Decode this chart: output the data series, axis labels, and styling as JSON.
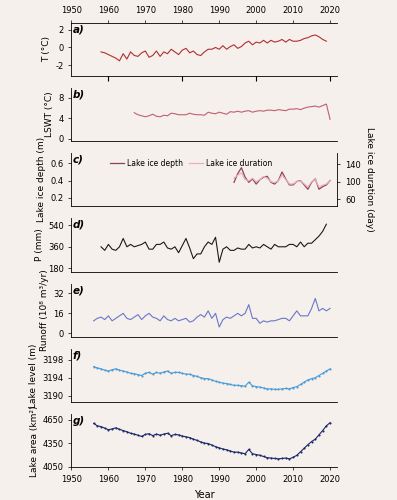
{
  "title_top_ticks": [
    1950,
    1960,
    1970,
    1980,
    1990,
    2000,
    2010,
    2020
  ],
  "xlim": [
    1950,
    2022
  ],
  "xlabel": "Year",
  "bg_color": "#f5f0eb",
  "panel_a": {
    "ylabel": "T (°C)",
    "ylim": [
      -3.2,
      2.8
    ],
    "yticks": [
      -2,
      0,
      2
    ],
    "color": "#b03030",
    "data_x": [
      1958,
      1959,
      1960,
      1961,
      1962,
      1963,
      1964,
      1965,
      1966,
      1967,
      1968,
      1969,
      1970,
      1971,
      1972,
      1973,
      1974,
      1975,
      1976,
      1977,
      1978,
      1979,
      1980,
      1981,
      1982,
      1983,
      1984,
      1985,
      1986,
      1987,
      1988,
      1989,
      1990,
      1991,
      1992,
      1993,
      1994,
      1995,
      1996,
      1997,
      1998,
      1999,
      2000,
      2001,
      2002,
      2003,
      2004,
      2005,
      2006,
      2007,
      2008,
      2009,
      2010,
      2011,
      2012,
      2013,
      2014,
      2015,
      2016,
      2017,
      2018,
      2019
    ],
    "data_y": [
      -0.5,
      -0.6,
      -0.8,
      -1.0,
      -1.2,
      -1.5,
      -0.7,
      -1.3,
      -0.5,
      -0.9,
      -1.0,
      -0.6,
      -0.4,
      -1.1,
      -0.9,
      -0.4,
      -1.0,
      -0.5,
      -0.7,
      -0.2,
      -0.5,
      -0.8,
      -0.3,
      -0.1,
      -0.6,
      -0.4,
      -0.8,
      -0.9,
      -0.5,
      -0.2,
      -0.2,
      0.0,
      -0.2,
      0.2,
      -0.2,
      0.1,
      0.3,
      -0.1,
      0.1,
      0.5,
      0.7,
      0.3,
      0.6,
      0.5,
      0.8,
      0.5,
      0.8,
      0.6,
      0.7,
      0.9,
      0.6,
      0.9,
      0.7,
      0.7,
      0.8,
      1.0,
      1.1,
      1.3,
      1.4,
      1.2,
      0.9,
      0.7
    ]
  },
  "panel_b": {
    "ylabel": "LSWT (°C)",
    "ylim": [
      -0.5,
      10
    ],
    "yticks": [
      0,
      4,
      8
    ],
    "color": "#c06070",
    "data_x": [
      1967,
      1968,
      1969,
      1970,
      1971,
      1972,
      1973,
      1974,
      1975,
      1976,
      1977,
      1978,
      1979,
      1980,
      1981,
      1982,
      1983,
      1984,
      1985,
      1986,
      1987,
      1988,
      1989,
      1990,
      1991,
      1992,
      1993,
      1994,
      1995,
      1996,
      1997,
      1998,
      1999,
      2000,
      2001,
      2002,
      2003,
      2004,
      2005,
      2006,
      2007,
      2008,
      2009,
      2010,
      2011,
      2012,
      2013,
      2014,
      2015,
      2016,
      2017,
      2018,
      2019,
      2020
    ],
    "data_y": [
      5.1,
      4.7,
      4.5,
      4.3,
      4.5,
      4.8,
      4.4,
      4.3,
      4.6,
      4.5,
      5.0,
      4.9,
      4.7,
      4.7,
      4.7,
      5.0,
      4.8,
      4.7,
      4.7,
      4.6,
      5.2,
      5.0,
      4.9,
      5.2,
      5.0,
      4.8,
      5.3,
      5.2,
      5.4,
      5.2,
      5.4,
      5.5,
      5.2,
      5.4,
      5.5,
      5.4,
      5.6,
      5.6,
      5.5,
      5.7,
      5.6,
      5.5,
      5.8,
      5.8,
      5.9,
      5.7,
      6.0,
      6.2,
      6.3,
      6.4,
      6.2,
      6.5,
      6.8,
      3.8
    ]
  },
  "panel_c": {
    "ylabel_left": "Lake ice depth (m)",
    "ylabel_right": "Lake ice duration (day)",
    "ylim_left": [
      0.1,
      0.72
    ],
    "ylim_right": [
      44,
      165
    ],
    "yticks_left": [
      0.2,
      0.4,
      0.6
    ],
    "yticks_right": [
      60,
      100,
      140
    ],
    "color_depth": "#904060",
    "color_duration": "#e8b0c0",
    "legend_labels": [
      "Lake ice depth",
      "Lake ice duration"
    ],
    "data_x": [
      1994,
      1995,
      1996,
      1997,
      1998,
      1999,
      2000,
      2001,
      2002,
      2003,
      2004,
      2005,
      2006,
      2007,
      2008,
      2009,
      2010,
      2011,
      2012,
      2013,
      2014,
      2015,
      2016,
      2017,
      2018,
      2019,
      2020
    ],
    "depth_y": [
      0.38,
      0.48,
      0.55,
      0.44,
      0.38,
      0.42,
      0.36,
      0.41,
      0.44,
      0.45,
      0.38,
      0.36,
      0.4,
      0.5,
      0.42,
      0.35,
      0.35,
      0.39,
      0.4,
      0.35,
      0.3,
      0.38,
      0.42,
      0.3,
      0.33,
      0.35,
      0.4
    ],
    "duration_y": [
      108,
      115,
      120,
      105,
      102,
      108,
      100,
      105,
      112,
      108,
      100,
      98,
      102,
      115,
      105,
      95,
      95,
      100,
      102,
      95,
      88,
      100,
      105,
      88,
      92,
      95,
      102
    ]
  },
  "panel_d": {
    "ylabel": "P (mm)",
    "ylim": [
      150,
      600
    ],
    "yticks": [
      180,
      360,
      540
    ],
    "color": "#1a1a1a",
    "data_x": [
      1958,
      1959,
      1960,
      1961,
      1962,
      1963,
      1964,
      1965,
      1966,
      1967,
      1968,
      1969,
      1970,
      1971,
      1972,
      1973,
      1974,
      1975,
      1976,
      1977,
      1978,
      1979,
      1980,
      1981,
      1982,
      1983,
      1984,
      1985,
      1986,
      1987,
      1988,
      1989,
      1990,
      1991,
      1992,
      1993,
      1994,
      1995,
      1996,
      1997,
      1998,
      1999,
      2000,
      2001,
      2002,
      2003,
      2004,
      2005,
      2006,
      2007,
      2008,
      2009,
      2010,
      2011,
      2012,
      2013,
      2014,
      2015,
      2016,
      2017,
      2018,
      2019
    ],
    "data_y": [
      360,
      330,
      380,
      340,
      330,
      360,
      430,
      360,
      380,
      360,
      370,
      380,
      400,
      340,
      340,
      380,
      380,
      400,
      350,
      340,
      360,
      310,
      370,
      430,
      350,
      260,
      300,
      300,
      360,
      400,
      380,
      440,
      230,
      340,
      360,
      330,
      330,
      350,
      340,
      340,
      380,
      350,
      360,
      350,
      380,
      360,
      340,
      380,
      360,
      360,
      360,
      380,
      380,
      360,
      400,
      360,
      390,
      390,
      420,
      450,
      490,
      550
    ]
  },
  "panel_e": {
    "ylabel": "Runoff (10⁸ m³/yr)",
    "ylim": [
      -3,
      40
    ],
    "yticks": [
      0,
      16,
      32
    ],
    "color": "#6878c8",
    "data_x": [
      1956,
      1957,
      1958,
      1959,
      1960,
      1961,
      1962,
      1963,
      1964,
      1965,
      1966,
      1967,
      1968,
      1969,
      1970,
      1971,
      1972,
      1973,
      1974,
      1975,
      1976,
      1977,
      1978,
      1979,
      1980,
      1981,
      1982,
      1983,
      1984,
      1985,
      1986,
      1987,
      1988,
      1989,
      1990,
      1991,
      1992,
      1993,
      1994,
      1995,
      1996,
      1997,
      1998,
      1999,
      2000,
      2001,
      2002,
      2003,
      2004,
      2005,
      2006,
      2007,
      2008,
      2009,
      2010,
      2011,
      2012,
      2013,
      2014,
      2015,
      2016,
      2017,
      2018,
      2019,
      2020
    ],
    "data_y": [
      10,
      12,
      13,
      11,
      14,
      10,
      12,
      14,
      16,
      12,
      11,
      13,
      15,
      11,
      14,
      16,
      13,
      12,
      10,
      14,
      11,
      10,
      12,
      10,
      11,
      12,
      9,
      10,
      13,
      15,
      13,
      18,
      12,
      16,
      5,
      11,
      13,
      12,
      14,
      16,
      14,
      16,
      23,
      12,
      12,
      8,
      10,
      9,
      10,
      10,
      11,
      12,
      12,
      10,
      14,
      18,
      14,
      14,
      14,
      20,
      28,
      18,
      20,
      18,
      20
    ]
  },
  "panel_f": {
    "ylabel": "Lake level (m)",
    "ylim": [
      3188.5,
      3200.5
    ],
    "yticks": [
      3190,
      3194,
      3198
    ],
    "color": "#4a9ad8",
    "marker": ".",
    "markersize": 3,
    "data_x": [
      1956,
      1957,
      1958,
      1959,
      1960,
      1961,
      1962,
      1963,
      1964,
      1965,
      1966,
      1967,
      1968,
      1969,
      1970,
      1971,
      1972,
      1973,
      1974,
      1975,
      1976,
      1977,
      1978,
      1979,
      1980,
      1981,
      1982,
      1983,
      1984,
      1985,
      1986,
      1987,
      1988,
      1989,
      1990,
      1991,
      1992,
      1993,
      1994,
      1995,
      1996,
      1997,
      1998,
      1999,
      2000,
      2001,
      2002,
      2003,
      2004,
      2005,
      2006,
      2007,
      2008,
      2009,
      2010,
      2011,
      2012,
      2013,
      2014,
      2015,
      2016,
      2017,
      2018,
      2019,
      2020
    ],
    "data_y": [
      3196.5,
      3196.2,
      3196.0,
      3195.7,
      3195.5,
      3195.8,
      3196.0,
      3195.7,
      3195.5,
      3195.3,
      3195.0,
      3194.9,
      3194.7,
      3194.5,
      3195.0,
      3195.2,
      3194.8,
      3195.2,
      3195.0,
      3195.3,
      3195.5,
      3195.0,
      3195.2,
      3195.2,
      3195.0,
      3194.8,
      3194.8,
      3194.5,
      3194.3,
      3194.0,
      3193.8,
      3193.8,
      3193.5,
      3193.2,
      3193.0,
      3192.8,
      3192.7,
      3192.5,
      3192.3,
      3192.3,
      3192.2,
      3192.1,
      3193.0,
      3192.2,
      3192.0,
      3191.9,
      3191.7,
      3191.5,
      3191.5,
      3191.4,
      3191.4,
      3191.5,
      3191.6,
      3191.5,
      3191.8,
      3192.0,
      3192.5,
      3193.0,
      3193.5,
      3193.8,
      3194.0,
      3194.5,
      3195.0,
      3195.5,
      3196.0
    ]
  },
  "panel_g": {
    "ylabel": "Lake area (km²)",
    "ylim": [
      4040,
      4720
    ],
    "yticks": [
      4050,
      4350,
      4650
    ],
    "color": "#1a2868",
    "marker": ".",
    "markersize": 3,
    "data_x": [
      1956,
      1957,
      1958,
      1959,
      1960,
      1961,
      1962,
      1963,
      1964,
      1965,
      1966,
      1967,
      1968,
      1969,
      1970,
      1971,
      1972,
      1973,
      1974,
      1975,
      1976,
      1977,
      1978,
      1979,
      1980,
      1981,
      1982,
      1983,
      1984,
      1985,
      1986,
      1987,
      1988,
      1989,
      1990,
      1991,
      1992,
      1993,
      1994,
      1995,
      1996,
      1997,
      1998,
      1999,
      2000,
      2001,
      2002,
      2003,
      2004,
      2005,
      2006,
      2007,
      2008,
      2009,
      2010,
      2011,
      2012,
      2013,
      2014,
      2015,
      2016,
      2017,
      2018,
      2019,
      2020
    ],
    "data_y": [
      4600,
      4570,
      4560,
      4540,
      4520,
      4530,
      4545,
      4525,
      4510,
      4495,
      4475,
      4465,
      4450,
      4435,
      4460,
      4470,
      4445,
      4465,
      4450,
      4465,
      4475,
      4445,
      4460,
      4455,
      4440,
      4430,
      4420,
      4400,
      4385,
      4365,
      4350,
      4345,
      4325,
      4305,
      4290,
      4275,
      4265,
      4250,
      4235,
      4235,
      4225,
      4215,
      4270,
      4215,
      4205,
      4195,
      4180,
      4165,
      4160,
      4155,
      4150,
      4155,
      4160,
      4150,
      4170,
      4195,
      4240,
      4285,
      4330,
      4370,
      4400,
      4455,
      4510,
      4570,
      4610
    ]
  }
}
